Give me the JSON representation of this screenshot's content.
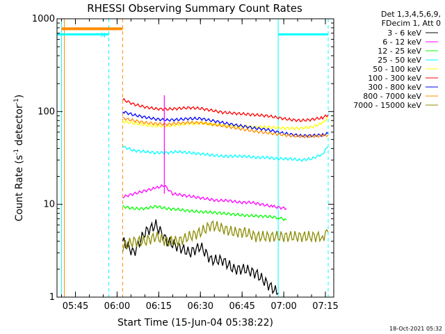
{
  "chart_data": {
    "type": "line",
    "title": "RHESSI Observing Summary Count Rates",
    "xlabel": "Start Time (15-Jun-04 05:38:22)",
    "ylabel_parts": [
      "Count Rate (s",
      "-1",
      " detector",
      "-1",
      ")"
    ],
    "yscale": "log",
    "ylim": [
      1,
      1000
    ],
    "y_ticks": [
      {
        "value": 1,
        "label": "1"
      },
      {
        "value": 10,
        "label": "10"
      },
      {
        "value": 100,
        "label": "100"
      },
      {
        "value": 1000,
        "label": "1000"
      }
    ],
    "xlim": [
      "05:38:22",
      "07:18:00"
    ],
    "x_ticks": [
      "05:45",
      "06:00",
      "06:15",
      "06:30",
      "06:45",
      "07:00",
      "07:15"
    ],
    "grid": false,
    "legend_placement": "right",
    "legend_header": [
      "Det 1,3,4,5,6,9,",
      "FDecim 1, Att 0"
    ],
    "legend": [
      {
        "label": "3 - 6 keV",
        "color": "#000000"
      },
      {
        "label": "6 - 12 keV",
        "color": "#ff00ff"
      },
      {
        "label": "12 - 25 keV",
        "color": "#00ff00"
      },
      {
        "label": "25 - 50 keV",
        "color": "#00ffff"
      },
      {
        "label": "50 - 100 keV",
        "color": "#ffff00"
      },
      {
        "label": "100 - 300 keV",
        "color": "#ff0000"
      },
      {
        "label": "300 - 800 keV",
        "color": "#0000ff"
      },
      {
        "label": "800 - 7000 keV",
        "color": "#ff8c00"
      },
      {
        "label": "7000 - 15000 keV",
        "color": "#8b8b00"
      }
    ],
    "series": [
      {
        "name": "3 - 6 keV",
        "color": "#000000",
        "points": [
          [
            "06:02",
            4
          ],
          [
            "06:06",
            3
          ],
          [
            "06:10",
            5
          ],
          [
            "06:14",
            6
          ],
          [
            "06:18",
            4
          ],
          [
            "06:22",
            3.5
          ],
          [
            "06:26",
            3
          ],
          [
            "06:30",
            3.5
          ],
          [
            "06:34",
            2.5
          ],
          [
            "06:38",
            2.5
          ],
          [
            "06:42",
            2
          ],
          [
            "06:46",
            2
          ],
          [
            "06:50",
            1.8
          ],
          [
            "06:54",
            1.4
          ],
          [
            "06:58",
            1.1
          ]
        ]
      },
      {
        "name": "6 - 12 keV",
        "color": "#ff00ff",
        "points": [
          [
            "06:02",
            12
          ],
          [
            "06:06",
            13
          ],
          [
            "06:10",
            14
          ],
          [
            "06:14",
            15
          ],
          [
            "06:17",
            16
          ],
          [
            "06:20",
            13
          ],
          [
            "06:24",
            12.5
          ],
          [
            "06:28",
            12
          ],
          [
            "06:32",
            11.5
          ],
          [
            "06:36",
            11
          ],
          [
            "06:40",
            11
          ],
          [
            "06:44",
            10.5
          ],
          [
            "06:48",
            10.5
          ],
          [
            "06:52",
            10
          ],
          [
            "06:56",
            9.5
          ],
          [
            "07:01",
            9
          ]
        ]
      },
      {
        "name": "12 - 25 keV",
        "color": "#00ff00",
        "points": [
          [
            "06:02",
            9.5
          ],
          [
            "06:06",
            9
          ],
          [
            "06:10",
            9
          ],
          [
            "06:14",
            9.5
          ],
          [
            "06:18",
            9
          ],
          [
            "06:22",
            8.8
          ],
          [
            "06:26",
            8.5
          ],
          [
            "06:30",
            8.3
          ],
          [
            "06:34",
            8.2
          ],
          [
            "06:38",
            8
          ],
          [
            "06:42",
            7.8
          ],
          [
            "06:46",
            7.6
          ],
          [
            "06:50",
            7.5
          ],
          [
            "06:54",
            7.4
          ],
          [
            "06:58",
            7.2
          ],
          [
            "07:01",
            6.8
          ]
        ]
      },
      {
        "name": "25 - 50 keV",
        "color": "#00ffff",
        "points": [
          [
            "06:02",
            42
          ],
          [
            "06:06",
            38
          ],
          [
            "06:10",
            37
          ],
          [
            "06:14",
            36
          ],
          [
            "06:18",
            36
          ],
          [
            "06:22",
            37
          ],
          [
            "06:26",
            36
          ],
          [
            "06:30",
            35
          ],
          [
            "06:34",
            34
          ],
          [
            "06:38",
            33
          ],
          [
            "06:42",
            33
          ],
          [
            "06:46",
            33
          ],
          [
            "06:50",
            32
          ],
          [
            "06:54",
            32
          ],
          [
            "06:58",
            31
          ],
          [
            "07:02",
            31
          ],
          [
            "07:06",
            30
          ],
          [
            "07:10",
            31
          ],
          [
            "07:14",
            35
          ],
          [
            "07:16",
            42
          ]
        ]
      },
      {
        "name": "50 - 100 keV",
        "color": "#ffff00",
        "points": [
          [
            "06:02",
            78
          ],
          [
            "06:06",
            75
          ],
          [
            "06:10",
            72
          ],
          [
            "06:14",
            70
          ],
          [
            "06:18",
            70
          ],
          [
            "06:22",
            72
          ],
          [
            "06:26",
            74
          ],
          [
            "06:30",
            75
          ],
          [
            "06:34",
            73
          ],
          [
            "06:38",
            71
          ],
          [
            "06:42",
            70
          ],
          [
            "06:46",
            69
          ],
          [
            "06:50",
            68
          ],
          [
            "06:54",
            68
          ],
          [
            "06:58",
            67
          ],
          [
            "07:02",
            66
          ],
          [
            "07:06",
            66
          ],
          [
            "07:10",
            68
          ],
          [
            "07:14",
            75
          ],
          [
            "07:16",
            88
          ]
        ]
      },
      {
        "name": "100 - 300 keV",
        "color": "#ff0000",
        "points": [
          [
            "06:02",
            135
          ],
          [
            "06:06",
            120
          ],
          [
            "06:10",
            112
          ],
          [
            "06:14",
            107
          ],
          [
            "06:18",
            106
          ],
          [
            "06:22",
            108
          ],
          [
            "06:26",
            110
          ],
          [
            "06:30",
            108
          ],
          [
            "06:34",
            103
          ],
          [
            "06:38",
            98
          ],
          [
            "06:42",
            96
          ],
          [
            "06:46",
            94
          ],
          [
            "06:50",
            92
          ],
          [
            "06:54",
            90
          ],
          [
            "06:58",
            86
          ],
          [
            "07:02",
            82
          ],
          [
            "07:06",
            80
          ],
          [
            "07:10",
            82
          ],
          [
            "07:14",
            86
          ],
          [
            "07:16",
            92
          ]
        ]
      },
      {
        "name": "300 - 800 keV",
        "color": "#0000ff",
        "points": [
          [
            "06:02",
            100
          ],
          [
            "06:06",
            92
          ],
          [
            "06:10",
            87
          ],
          [
            "06:14",
            83
          ],
          [
            "06:18",
            81
          ],
          [
            "06:22",
            82
          ],
          [
            "06:26",
            84
          ],
          [
            "06:30",
            84
          ],
          [
            "06:34",
            80
          ],
          [
            "06:38",
            76
          ],
          [
            "06:42",
            72
          ],
          [
            "06:46",
            69
          ],
          [
            "06:50",
            66
          ],
          [
            "06:54",
            64
          ],
          [
            "06:58",
            60
          ],
          [
            "07:02",
            57
          ],
          [
            "07:06",
            55
          ],
          [
            "07:10",
            55
          ],
          [
            "07:14",
            56
          ],
          [
            "07:16",
            58
          ]
        ]
      },
      {
        "name": "800 - 7000 keV",
        "color": "#ff8c00",
        "points": [
          [
            "06:02",
            85
          ],
          [
            "06:06",
            80
          ],
          [
            "06:10",
            76
          ],
          [
            "06:14",
            74
          ],
          [
            "06:18",
            73
          ],
          [
            "06:22",
            75
          ],
          [
            "06:26",
            76
          ],
          [
            "06:30",
            76
          ],
          [
            "06:34",
            73
          ],
          [
            "06:38",
            70
          ],
          [
            "06:42",
            67
          ],
          [
            "06:46",
            64
          ],
          [
            "06:50",
            61
          ],
          [
            "06:54",
            59
          ],
          [
            "06:58",
            57
          ],
          [
            "07:02",
            55
          ],
          [
            "07:06",
            54
          ],
          [
            "07:10",
            54
          ],
          [
            "07:14",
            55
          ],
          [
            "07:16",
            56
          ]
        ]
      },
      {
        "name": "7000 - 15000 keV",
        "color": "#8b8b00",
        "points": [
          [
            "06:02",
            3.5
          ],
          [
            "06:06",
            4
          ],
          [
            "06:10",
            4
          ],
          [
            "06:14",
            4.5
          ],
          [
            "06:18",
            4
          ],
          [
            "06:22",
            4
          ],
          [
            "06:26",
            4.5
          ],
          [
            "06:30",
            5
          ],
          [
            "06:34",
            6
          ],
          [
            "06:38",
            5.5
          ],
          [
            "06:42",
            5
          ],
          [
            "06:46",
            5
          ],
          [
            "06:50",
            4.5
          ],
          [
            "06:54",
            4.5
          ],
          [
            "06:58",
            4.5
          ],
          [
            "07:02",
            4.5
          ],
          [
            "07:06",
            4.5
          ],
          [
            "07:10",
            4.5
          ],
          [
            "07:14",
            4.5
          ],
          [
            "07:16",
            5
          ]
        ]
      }
    ],
    "spike": {
      "time": "06:17",
      "value": 150,
      "color": "#ff00ff"
    },
    "orange_bar": {
      "start": "05:40",
      "end": "06:02",
      "value": 780
    },
    "cyan_bars": [
      {
        "start": "05:38:22",
        "end": "05:57",
        "value": 680,
        "label": "N"
      },
      {
        "start": "06:58",
        "end": "07:16",
        "value": 680,
        "label": ""
      }
    ],
    "vlines": [
      {
        "time": "05:40",
        "color": "#00ffff",
        "style": "solid"
      },
      {
        "time": "05:41",
        "color": "#ff8c00",
        "style": "solid"
      },
      {
        "time": "05:57",
        "color": "#00ffff",
        "style": "dashed"
      },
      {
        "time": "06:02",
        "color": "#ff8c00",
        "style": "dashed"
      },
      {
        "time": "06:58",
        "color": "#00ffff",
        "style": "solid"
      },
      {
        "time": "07:16",
        "color": "#00ffff",
        "style": "dashed"
      }
    ]
  },
  "footer": {
    "timestamp": "18-Oct-2021 05:32"
  }
}
